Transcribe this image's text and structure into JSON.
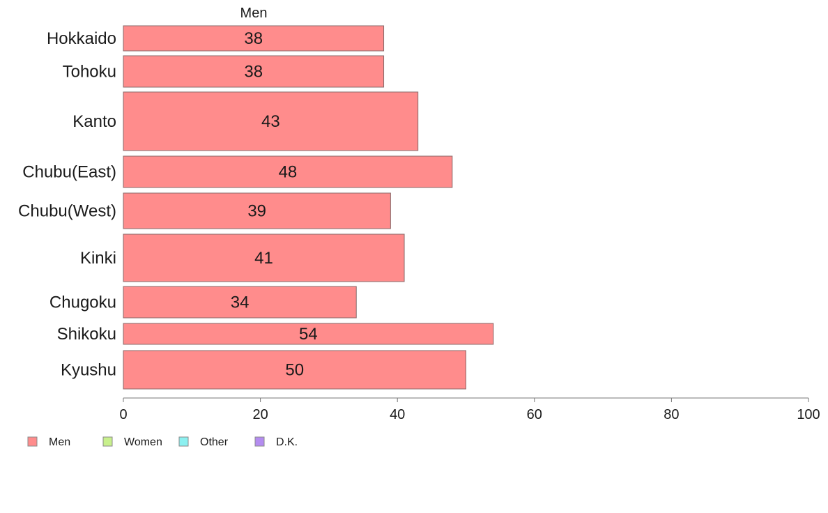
{
  "chart_data": {
    "type": "bar",
    "orientation": "horizontal",
    "title": "Men",
    "categories": [
      "Hokkaido",
      "Tohoku",
      "Kanto",
      "Chubu(East)",
      "Chubu(West)",
      "Kinki",
      "Chugoku",
      "Shikoku",
      "Kyushu"
    ],
    "series": [
      {
        "name": "Men",
        "values": [
          38,
          38,
          43,
          48,
          39,
          41,
          34,
          54,
          50
        ],
        "color": "#ff8c8c"
      }
    ],
    "xlim": [
      0,
      100
    ],
    "xticks": [
      0,
      20,
      40,
      60,
      80,
      100
    ],
    "grid": false,
    "legend": {
      "placement": "bottom-left",
      "entries": [
        {
          "label": "Men",
          "color": "#ff8c8c"
        },
        {
          "label": "Women",
          "color": "#c8f08c"
        },
        {
          "label": "Other",
          "color": "#8cf0f0"
        },
        {
          "label": "D.K.",
          "color": "#b48cf0"
        }
      ]
    }
  }
}
